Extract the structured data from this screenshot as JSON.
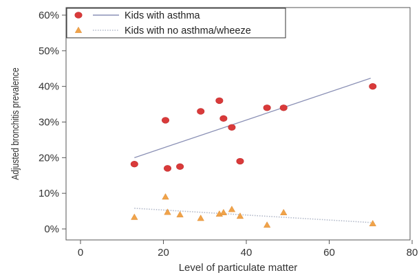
{
  "chart_data": {
    "type": "scatter",
    "title": "",
    "xlabel": "Level of particulate matter",
    "ylabel": "Adjusted bronchitis prevalence",
    "xlim": [
      0,
      80
    ],
    "ylim": [
      0,
      60
    ],
    "x_ticks": [
      0,
      20,
      40,
      60,
      80
    ],
    "y_ticks": [
      0,
      10,
      20,
      30,
      40,
      50,
      60
    ],
    "y_tick_format": "percent",
    "grid": false,
    "legend": "top-left",
    "series": [
      {
        "name": "Kids with asthma",
        "marker": "circle",
        "color": "#d93a3a",
        "line_color": "#8a90b5",
        "line_style": "solid",
        "points": [
          {
            "x": 13,
            "y": 18.2
          },
          {
            "x": 20.5,
            "y": 30.5
          },
          {
            "x": 21,
            "y": 17
          },
          {
            "x": 24,
            "y": 17.5
          },
          {
            "x": 29,
            "y": 33
          },
          {
            "x": 33.5,
            "y": 36
          },
          {
            "x": 34.5,
            "y": 31
          },
          {
            "x": 36.5,
            "y": 28.5
          },
          {
            "x": 38.5,
            "y": 19
          },
          {
            "x": 45,
            "y": 34
          },
          {
            "x": 49,
            "y": 34
          },
          {
            "x": 70.5,
            "y": 40
          }
        ],
        "trend": [
          {
            "x": 13,
            "y": 20
          },
          {
            "x": 70,
            "y": 42.3
          }
        ]
      },
      {
        "name": "Kids with no asthma/wheeze",
        "marker": "triangle",
        "color": "#f0a34a",
        "line_color": "#b0b7c8",
        "line_style": "dotted",
        "points": [
          {
            "x": 13,
            "y": 3.3
          },
          {
            "x": 20.5,
            "y": 9
          },
          {
            "x": 21,
            "y": 4.7
          },
          {
            "x": 24,
            "y": 4
          },
          {
            "x": 29,
            "y": 3
          },
          {
            "x": 33.5,
            "y": 4.2
          },
          {
            "x": 34.5,
            "y": 4.6
          },
          {
            "x": 36.5,
            "y": 5.5
          },
          {
            "x": 38.5,
            "y": 3.6
          },
          {
            "x": 45,
            "y": 1.1
          },
          {
            "x": 49,
            "y": 4.6
          },
          {
            "x": 70.5,
            "y": 1.5
          }
        ],
        "trend": [
          {
            "x": 13,
            "y": 5.8
          },
          {
            "x": 70,
            "y": 1.8
          }
        ]
      }
    ]
  }
}
